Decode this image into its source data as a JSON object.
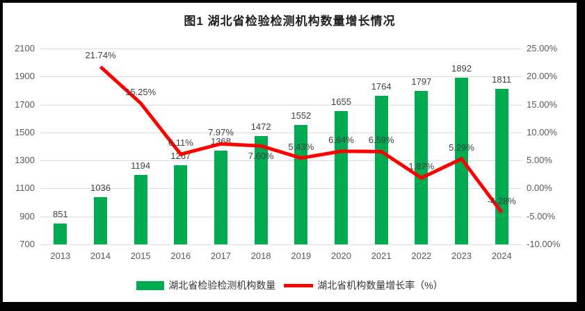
{
  "chart_data": {
    "type": "bar",
    "title": "图1 湖北省检验检测机构数量增长情况",
    "categories": [
      "2013",
      "2014",
      "2015",
      "2016",
      "2017",
      "2018",
      "2019",
      "2020",
      "2021",
      "2022",
      "2023",
      "2024"
    ],
    "series": [
      {
        "name": "湖北省检验检测机构数量",
        "type": "bar",
        "color": "#00AA50",
        "values": [
          851,
          1036,
          1194,
          1267,
          1368,
          1472,
          1552,
          1655,
          1764,
          1797,
          1892,
          1811
        ],
        "labels": [
          "851",
          "1036",
          "1194",
          "1267",
          "1368",
          "1472",
          "1552",
          "1655",
          "1764",
          "1797",
          "1892",
          "1811"
        ]
      },
      {
        "name": "湖北省机构数量增长率（%）",
        "type": "line",
        "color": "#FF0000",
        "values": [
          null,
          21.74,
          15.25,
          6.11,
          7.97,
          7.6,
          5.43,
          6.64,
          6.59,
          1.87,
          5.29,
          -4.28
        ],
        "labels": [
          null,
          "21.74%",
          "15.25%",
          "6.11%",
          "7.97%",
          "7.60%",
          "5.43%",
          "6.64%",
          "6.59%",
          "1.87%",
          "5.29%",
          "-4.28%"
        ],
        "label_side": [
          null,
          "above",
          "above",
          "above",
          "above",
          "below",
          "above",
          "above",
          "above",
          "above",
          "above",
          "above"
        ]
      }
    ],
    "axes": {
      "left": {
        "min": 700,
        "max": 2100,
        "step": 200,
        "tick_labels": [
          "2100",
          "1900",
          "1700",
          "1500",
          "1300",
          "1100",
          "900",
          "700"
        ]
      },
      "right": {
        "min": -10,
        "max": 25,
        "step": 5,
        "tick_labels": [
          "25.00%",
          "20.00%",
          "15.00%",
          "10.00%",
          "5.00%",
          "0.00%",
          "-5.00%",
          "-10.00%"
        ]
      }
    },
    "grid": true,
    "legend_position": "bottom"
  },
  "colors": {
    "bar": "#00AA50",
    "line": "#FF0000",
    "grid": "#D9D9D9",
    "axis_text": "#595959",
    "label_text": "#404040",
    "frame": "#000000",
    "background": "#FFFFFF"
  }
}
